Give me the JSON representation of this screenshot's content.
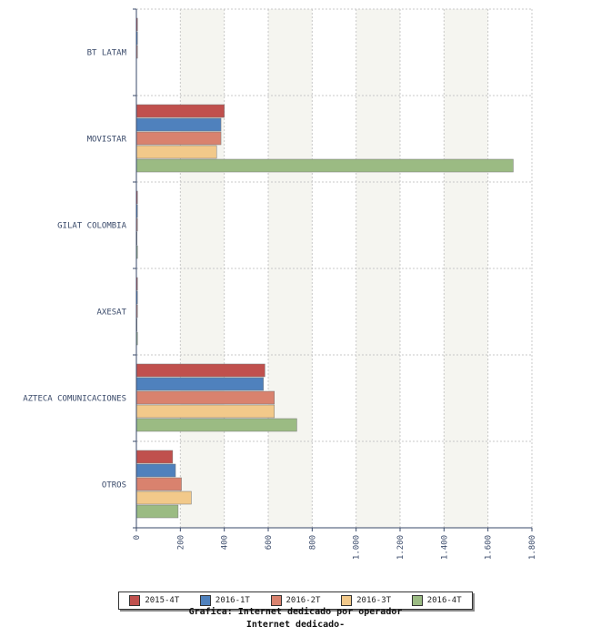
{
  "chart_data": {
    "type": "bar",
    "orientation": "horizontal",
    "categories": [
      "BT LATAM",
      "MOVISTAR",
      "GILAT COLOMBIA",
      "AXESAT",
      "AZTECA COMUNICACIONES",
      "OTROS"
    ],
    "series": [
      {
        "name": "2015-4T",
        "color": "#c0504d",
        "values": [
          5,
          400,
          5,
          5,
          585,
          165
        ]
      },
      {
        "name": "2016-1T",
        "color": "#4f81bd",
        "values": [
          5,
          385,
          5,
          5,
          578,
          178
        ]
      },
      {
        "name": "2016-2T",
        "color": "#d9826e",
        "values": [
          5,
          385,
          5,
          5,
          628,
          205
        ]
      },
      {
        "name": "2016-3T",
        "color": "#f2c98a",
        "values": [
          0,
          365,
          3,
          3,
          628,
          250
        ]
      },
      {
        "name": "2016-4T",
        "color": "#9bbb83",
        "values": [
          0,
          1715,
          5,
          5,
          730,
          190
        ]
      }
    ],
    "xlim": [
      0,
      1800
    ],
    "xticks": [
      "0",
      "200",
      "400",
      "600",
      "800",
      "1.000",
      "1.200",
      "1.400",
      "1.600",
      "1.800"
    ],
    "grid": true,
    "legend_position": "bottom",
    "title": "Grafica: Internet dedicado por operador",
    "subtitle": "Internet dedicado-"
  }
}
